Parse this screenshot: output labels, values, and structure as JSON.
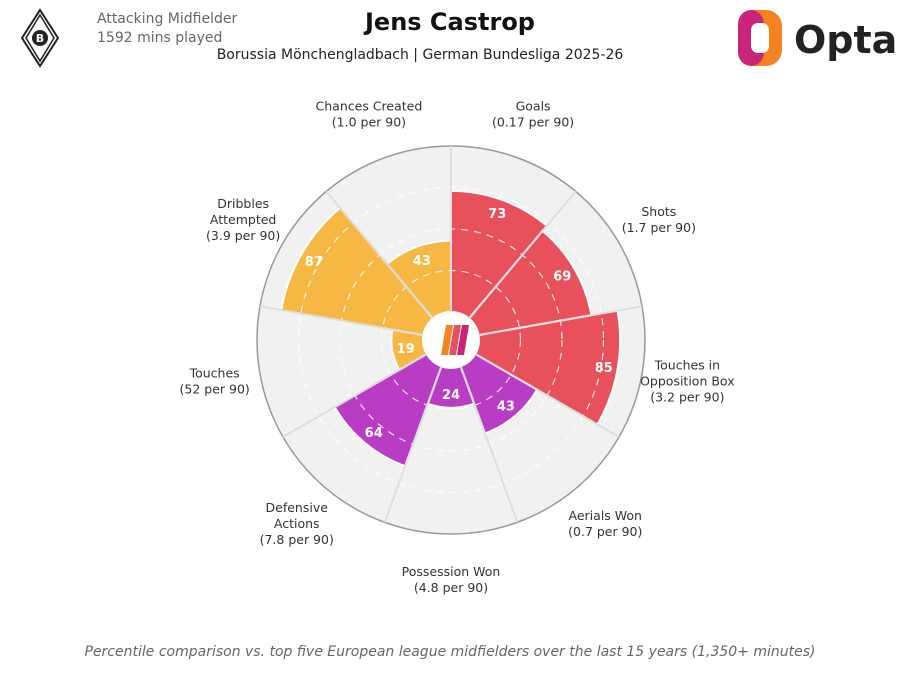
{
  "header": {
    "position": "Attacking Midfielder",
    "minutes": "1592 mins played",
    "title": "Jens Castrop",
    "subtitle": "Borussia Mönchengladbach | German Bundesliga 2025-26",
    "brand": "Opta"
  },
  "footer": {
    "note": "Percentile comparison vs. top five European league midfielders over the last 15 years (1,350+ minutes)"
  },
  "colors": {
    "attacking": "#e8505b",
    "possession": "#f6b843",
    "defending": "#b93cc5",
    "background_circle": "#f1f1f1"
  },
  "chart_data": {
    "type": "radar",
    "scale_max": 100,
    "metrics": [
      {
        "label_lines": [
          "Goals",
          "(0.17 per 90)"
        ],
        "percentile": 73,
        "group": "attacking"
      },
      {
        "label_lines": [
          "Shots",
          "(1.7 per 90)"
        ],
        "percentile": 69,
        "group": "attacking"
      },
      {
        "label_lines": [
          "Touches in",
          "Opposition Box",
          "(3.2 per 90)"
        ],
        "percentile": 85,
        "group": "attacking"
      },
      {
        "label_lines": [
          "Aerials Won",
          "(0.7 per 90)"
        ],
        "percentile": 43,
        "group": "defending"
      },
      {
        "label_lines": [
          "Possession Won",
          "(4.8 per 90)"
        ],
        "percentile": 24,
        "group": "defending"
      },
      {
        "label_lines": [
          "Defensive",
          "Actions",
          "(7.8 per 90)"
        ],
        "percentile": 64,
        "group": "defending"
      },
      {
        "label_lines": [
          "Touches",
          "(52 per 90)"
        ],
        "percentile": 19,
        "group": "possession"
      },
      {
        "label_lines": [
          "Dribbles",
          "Attempted",
          "(3.9 per 90)"
        ],
        "percentile": 87,
        "group": "possession"
      },
      {
        "label_lines": [
          "Chances Created",
          "(1.0 per 90)"
        ],
        "percentile": 43,
        "group": "possession"
      }
    ]
  }
}
